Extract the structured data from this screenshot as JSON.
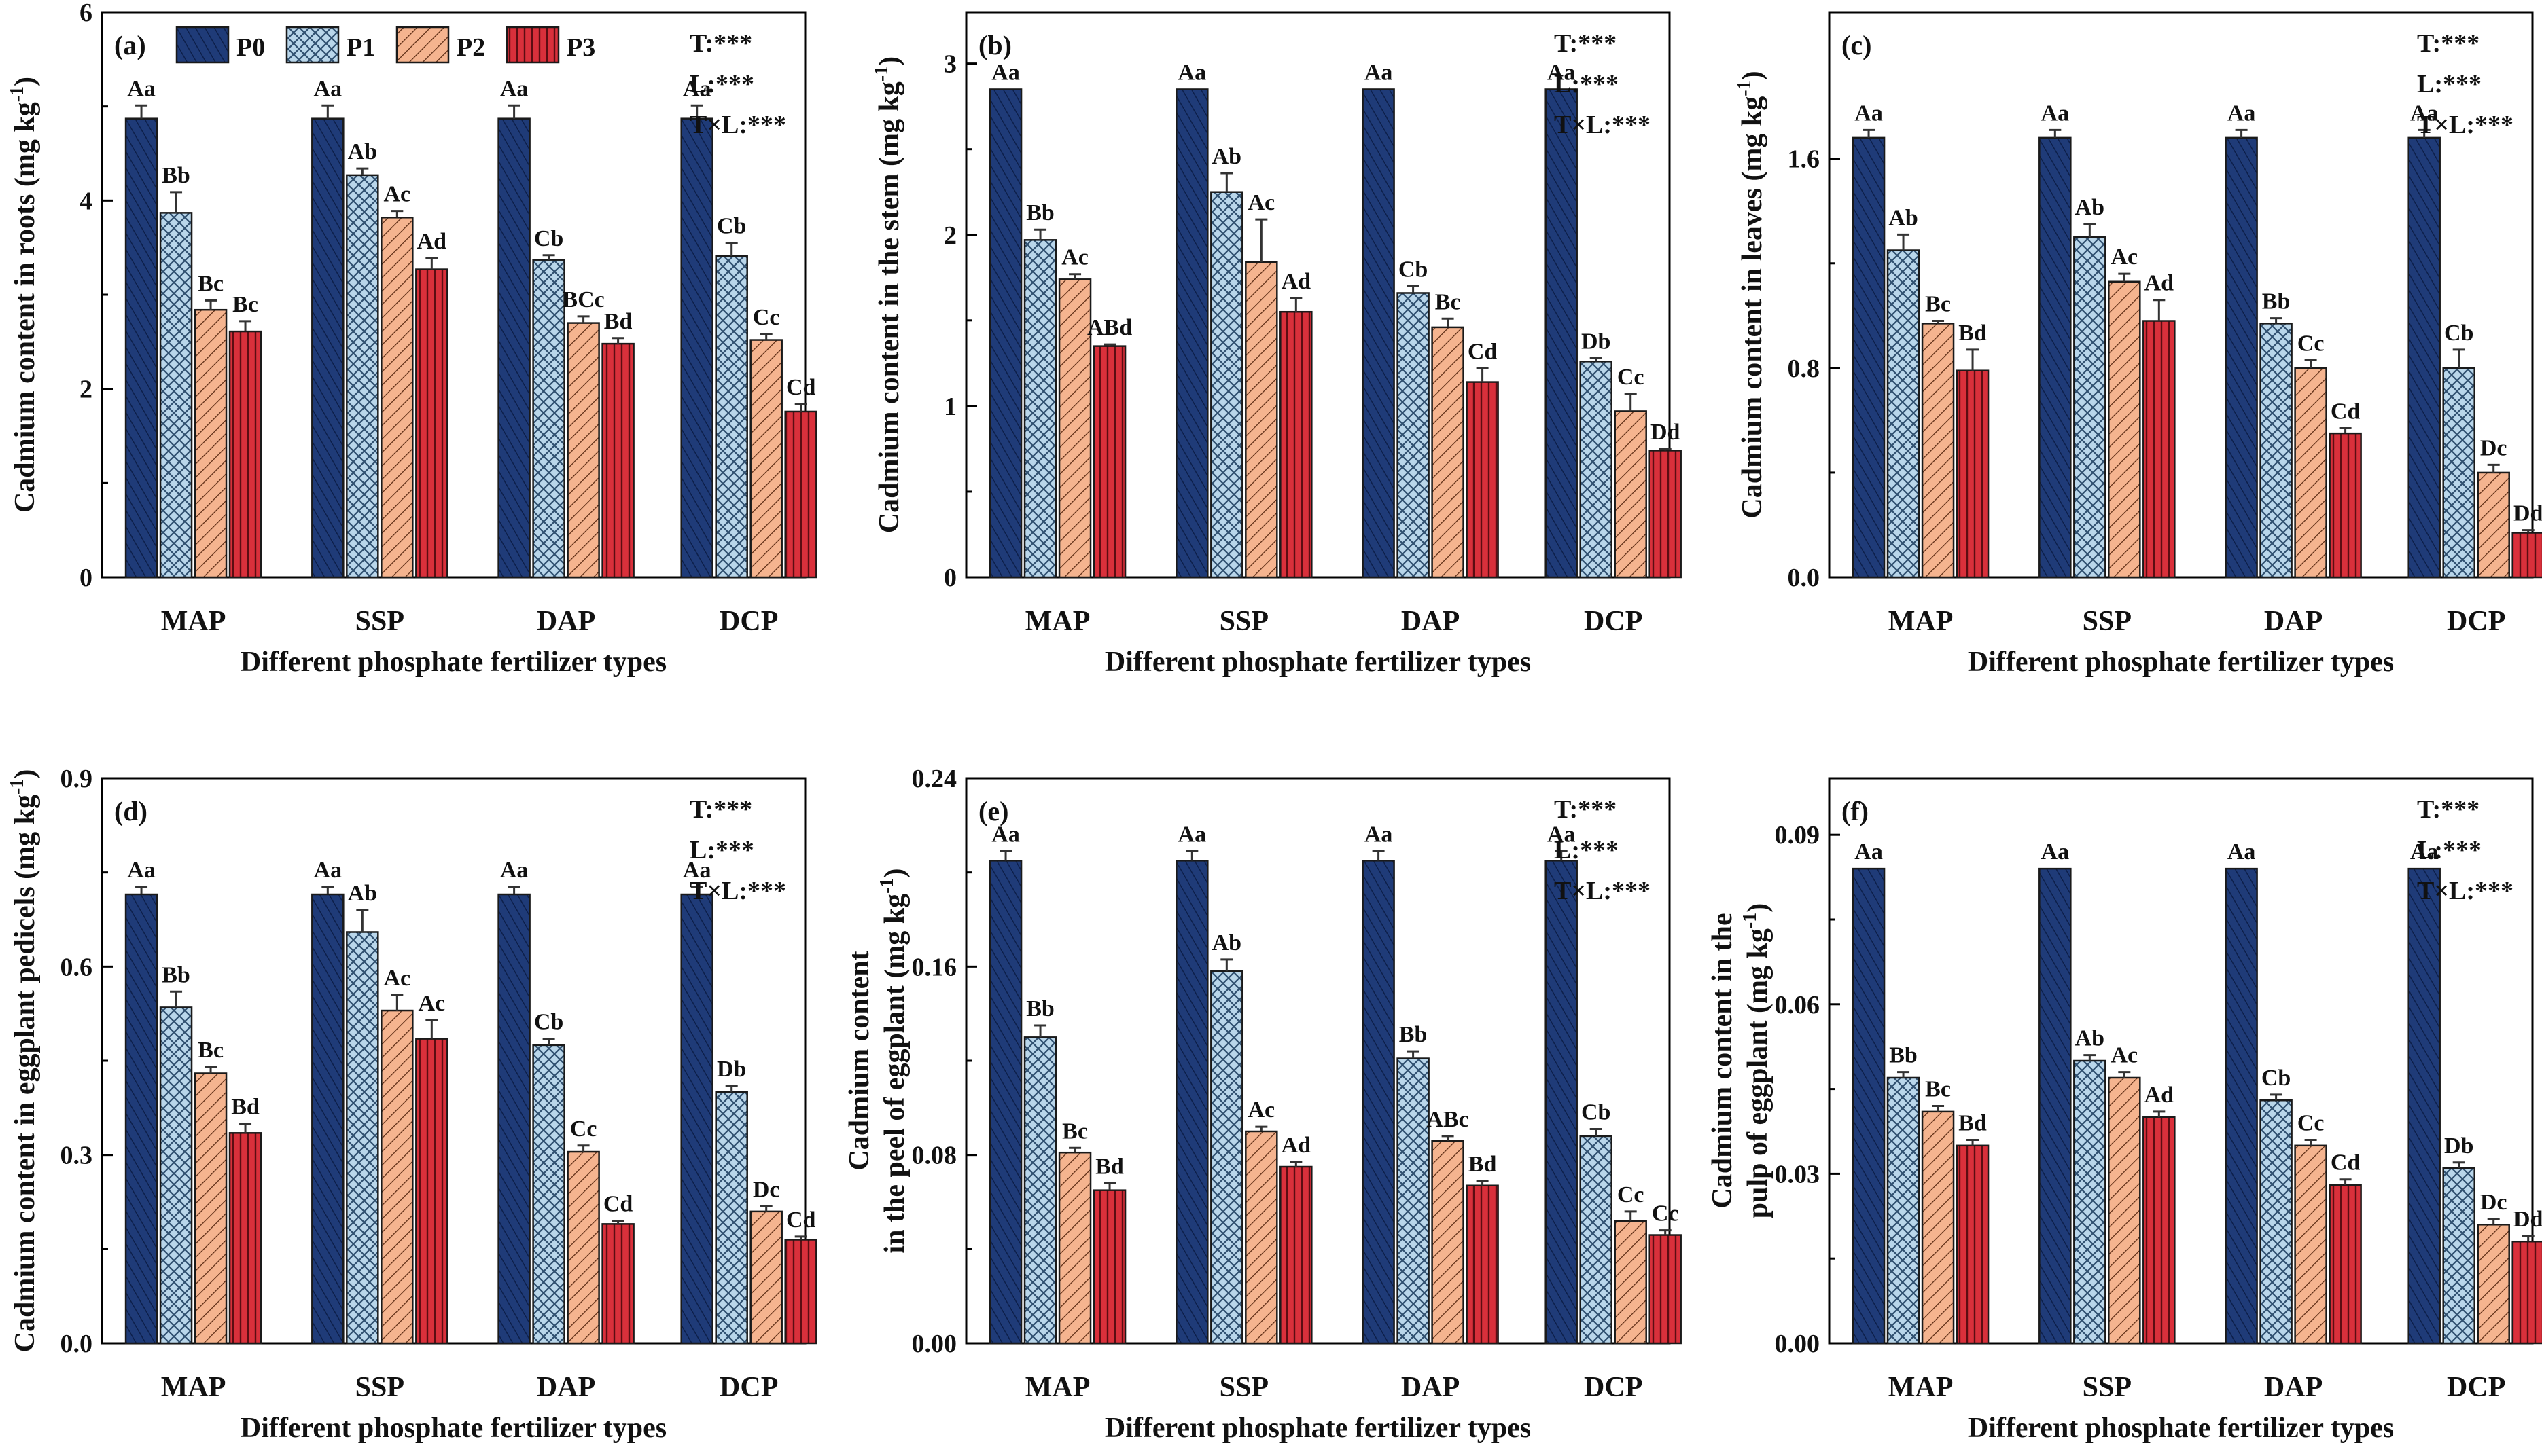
{
  "colors": {
    "P0": "#1f3b78",
    "P1": "#b9d6ea",
    "P2": "#f5b48f",
    "P3": "#d9303b"
  },
  "legend": [
    "P0",
    "P1",
    "P2",
    "P3"
  ],
  "chart_data": [
    {
      "type": "bar",
      "panel": "(a)",
      "xlabel": "Different phosphate fertilizer types",
      "ylabel": "Cadmium content in roots (mg kg-1)",
      "ylabel_lines": [
        "Cadmium content in roots (mg kg",
        "-1",
        ")"
      ],
      "categories": [
        "MAP",
        "SSP",
        "DAP",
        "DCP"
      ],
      "ylim": [
        0,
        6
      ],
      "yticks": [
        0,
        2,
        4,
        6
      ],
      "tick_decimals": 0,
      "stats": [
        "T:***",
        "L:***",
        "T×L:***"
      ],
      "series": [
        {
          "name": "P0",
          "values": [
            4.87,
            4.87,
            4.87,
            4.87
          ],
          "errors": [
            0.14,
            0.14,
            0.14,
            0.14
          ],
          "labels": [
            "Aa",
            "Aa",
            "Aa",
            "Aa"
          ]
        },
        {
          "name": "P1",
          "values": [
            3.87,
            4.27,
            3.37,
            3.41
          ],
          "errors": [
            0.22,
            0.07,
            0.05,
            0.14
          ],
          "labels": [
            "Bb",
            "Ab",
            "Cb",
            "Cb"
          ]
        },
        {
          "name": "P2",
          "values": [
            2.84,
            3.82,
            2.7,
            2.52
          ],
          "errors": [
            0.1,
            0.07,
            0.07,
            0.06
          ],
          "labels": [
            "Bc",
            "Ac",
            "BCc",
            "Cc"
          ]
        },
        {
          "name": "P3",
          "values": [
            2.61,
            3.27,
            2.48,
            1.76
          ],
          "errors": [
            0.11,
            0.12,
            0.06,
            0.08
          ],
          "labels": [
            "Bc",
            "Ad",
            "Bd",
            "Cd"
          ]
        }
      ]
    },
    {
      "type": "bar",
      "panel": "(b)",
      "xlabel": "Different phosphate fertilizer types",
      "ylabel": "Cadmium content in the stem (mg kg-1)",
      "ylabel_lines": [
        "Cadmium content in the stem (mg kg",
        "-1",
        ")"
      ],
      "categories": [
        "MAP",
        "SSP",
        "DAP",
        "DCP"
      ],
      "ylim": [
        0,
        3.3
      ],
      "yticks": [
        0,
        1,
        2,
        3
      ],
      "tick_decimals": 0,
      "stats": [
        "T:***",
        "L:***",
        "T×L:***"
      ],
      "series": [
        {
          "name": "P0",
          "values": [
            2.85,
            2.85,
            2.85,
            2.85
          ],
          "errors": [
            0,
            0,
            0,
            0
          ],
          "labels": [
            "Aa",
            "Aa",
            "Aa",
            "Aa"
          ]
        },
        {
          "name": "P1",
          "values": [
            1.97,
            2.25,
            1.66,
            1.26
          ],
          "errors": [
            0.06,
            0.11,
            0.04,
            0.02
          ],
          "labels": [
            "Bb",
            "Ab",
            "Cb",
            "Db"
          ]
        },
        {
          "name": "P2",
          "values": [
            1.74,
            1.84,
            1.46,
            0.97
          ],
          "errors": [
            0.03,
            0.25,
            0.05,
            0.1
          ],
          "labels": [
            "Ac",
            "Ac",
            "Bc",
            "Cc"
          ]
        },
        {
          "name": "P3",
          "values": [
            1.35,
            1.55,
            1.14,
            0.74
          ],
          "errors": [
            0.01,
            0.08,
            0.08,
            0.01
          ],
          "labels": [
            "ABd",
            "Ad",
            "Cd",
            "Dd"
          ]
        }
      ]
    },
    {
      "type": "bar",
      "panel": "(c)",
      "xlabel": "Different phosphate fertilizer types",
      "ylabel": "Cadmium content in leaves (mg kg-1)",
      "ylabel_lines": [
        "Cadmium content in leaves (mg kg",
        "-1",
        ")"
      ],
      "categories": [
        "MAP",
        "SSP",
        "DAP",
        "DCP"
      ],
      "ylim": [
        0,
        2.16
      ],
      "yticks": [
        0.0,
        0.8,
        1.6
      ],
      "tick_decimals": 1,
      "stats": [
        "T:***",
        "L:***",
        "T×L:***"
      ],
      "series": [
        {
          "name": "P0",
          "values": [
            1.68,
            1.68,
            1.68,
            1.68
          ],
          "errors": [
            0.03,
            0.03,
            0.03,
            0.03
          ],
          "labels": [
            "Aa",
            "Aa",
            "Aa",
            "Aa"
          ]
        },
        {
          "name": "P1",
          "values": [
            1.25,
            1.3,
            0.97,
            0.8
          ],
          "errors": [
            0.06,
            0.05,
            0.02,
            0.07
          ],
          "labels": [
            "Ab",
            "Ab",
            "Bb",
            "Cb"
          ]
        },
        {
          "name": "P2",
          "values": [
            0.97,
            1.13,
            0.8,
            0.4
          ],
          "errors": [
            0.01,
            0.03,
            0.03,
            0.03
          ],
          "labels": [
            "Bc",
            "Ac",
            "Cc",
            "Dc"
          ]
        },
        {
          "name": "P3",
          "values": [
            0.79,
            0.98,
            0.55,
            0.17
          ],
          "errors": [
            0.08,
            0.08,
            0.02,
            0.01
          ],
          "labels": [
            "Bd",
            "Ad",
            "Cd",
            "Dd"
          ]
        }
      ]
    },
    {
      "type": "bar",
      "panel": "(d)",
      "xlabel": "Different phosphate fertilizer types",
      "ylabel": "Cadmium content in eggplant pedicels (mg kg-1)",
      "ylabel_lines": [
        "Cadmium content in eggplant pedicels (mg kg",
        "-1",
        ")"
      ],
      "categories": [
        "MAP",
        "SSP",
        "DAP",
        "DCP"
      ],
      "ylim": [
        0,
        0.9
      ],
      "yticks": [
        0.0,
        0.3,
        0.6,
        0.9
      ],
      "tick_decimals": 1,
      "stats": [
        "T:***",
        "L:***",
        "T×L:***"
      ],
      "series": [
        {
          "name": "P0",
          "values": [
            0.715,
            0.715,
            0.715,
            0.715
          ],
          "errors": [
            0.012,
            0.012,
            0.012,
            0.012
          ],
          "labels": [
            "Aa",
            "Aa",
            "Aa",
            "Aa"
          ]
        },
        {
          "name": "P1",
          "values": [
            0.535,
            0.655,
            0.475,
            0.4
          ],
          "errors": [
            0.025,
            0.035,
            0.01,
            0.01
          ],
          "labels": [
            "Bb",
            "Ab",
            "Cb",
            "Db"
          ]
        },
        {
          "name": "P2",
          "values": [
            0.43,
            0.53,
            0.305,
            0.21
          ],
          "errors": [
            0.01,
            0.025,
            0.01,
            0.008
          ],
          "labels": [
            "Bc",
            "Ac",
            "Cc",
            "Dc"
          ]
        },
        {
          "name": "P3",
          "values": [
            0.335,
            0.485,
            0.19,
            0.165
          ],
          "errors": [
            0.015,
            0.03,
            0.005,
            0.005
          ],
          "labels": [
            "Bd",
            "Ac",
            "Cd",
            "Cd"
          ]
        }
      ]
    },
    {
      "type": "bar",
      "panel": "(e)",
      "xlabel": "Different phosphate fertilizer types",
      "ylabel": "Cadmium content in the peel of eggplant (mg kg-1)",
      "ylabel_lines": [
        "in the peel of eggplant (mg kg",
        "-1",
        ")"
      ],
      "ylabel_top": "Cadmium content",
      "categories": [
        "MAP",
        "SSP",
        "DAP",
        "DCP"
      ],
      "ylim": [
        0,
        0.24
      ],
      "yticks": [
        0.0,
        0.08,
        0.16,
        0.24
      ],
      "tick_decimals": 2,
      "stats": [
        "T:***",
        "L:***",
        "T×L:***"
      ],
      "series": [
        {
          "name": "P0",
          "values": [
            0.205,
            0.205,
            0.205,
            0.205
          ],
          "errors": [
            0.004,
            0.004,
            0.004,
            0.004
          ],
          "labels": [
            "Aa",
            "Aa",
            "Aa",
            "Aa"
          ]
        },
        {
          "name": "P1",
          "values": [
            0.13,
            0.158,
            0.121,
            0.088
          ],
          "errors": [
            0.005,
            0.005,
            0.003,
            0.003
          ],
          "labels": [
            "Bb",
            "Ab",
            "Bb",
            "Cb"
          ]
        },
        {
          "name": "P2",
          "values": [
            0.081,
            0.09,
            0.086,
            0.052
          ],
          "errors": [
            0.002,
            0.002,
            0.002,
            0.004
          ],
          "labels": [
            "Bc",
            "Ac",
            "ABc",
            "Cc"
          ]
        },
        {
          "name": "P3",
          "values": [
            0.065,
            0.075,
            0.067,
            0.046
          ],
          "errors": [
            0.003,
            0.002,
            0.002,
            0.002
          ],
          "labels": [
            "Bd",
            "Ad",
            "Bd",
            "Cc"
          ]
        }
      ]
    },
    {
      "type": "bar",
      "panel": "(f)",
      "xlabel": "Different phosphate fertilizer types",
      "ylabel": "Cadmium content in the pulp of eggplant (mg kg-1)",
      "ylabel_lines": [
        "pulp of eggplant (mg kg",
        "-1",
        ")"
      ],
      "ylabel_top": "Cadmium content in the",
      "categories": [
        "MAP",
        "SSP",
        "DAP",
        "DCP"
      ],
      "ylim": [
        0,
        0.1
      ],
      "yticks": [
        0.0,
        0.03,
        0.06,
        0.09
      ],
      "tick_decimals": 2,
      "stats": [
        "T:***",
        "L:***",
        "T×L:***"
      ],
      "series": [
        {
          "name": "P0",
          "values": [
            0.084,
            0.084,
            0.084,
            0.084
          ],
          "errors": [
            0,
            0,
            0,
            0
          ],
          "labels": [
            "Aa",
            "Aa",
            "Aa",
            "Aa"
          ]
        },
        {
          "name": "P1",
          "values": [
            0.047,
            0.05,
            0.043,
            0.031
          ],
          "errors": [
            0.001,
            0.001,
            0.001,
            0.001
          ],
          "labels": [
            "Bb",
            "Ab",
            "Cb",
            "Db"
          ]
        },
        {
          "name": "P2",
          "values": [
            0.041,
            0.047,
            0.035,
            0.021
          ],
          "errors": [
            0.001,
            0.001,
            0.001,
            0.001
          ],
          "labels": [
            "Bc",
            "Ac",
            "Cc",
            "Dc"
          ]
        },
        {
          "name": "P3",
          "values": [
            0.035,
            0.04,
            0.028,
            0.018
          ],
          "errors": [
            0.001,
            0.001,
            0.001,
            0.001
          ],
          "labels": [
            "Bd",
            "Ad",
            "Cd",
            "Dd"
          ]
        }
      ]
    }
  ]
}
